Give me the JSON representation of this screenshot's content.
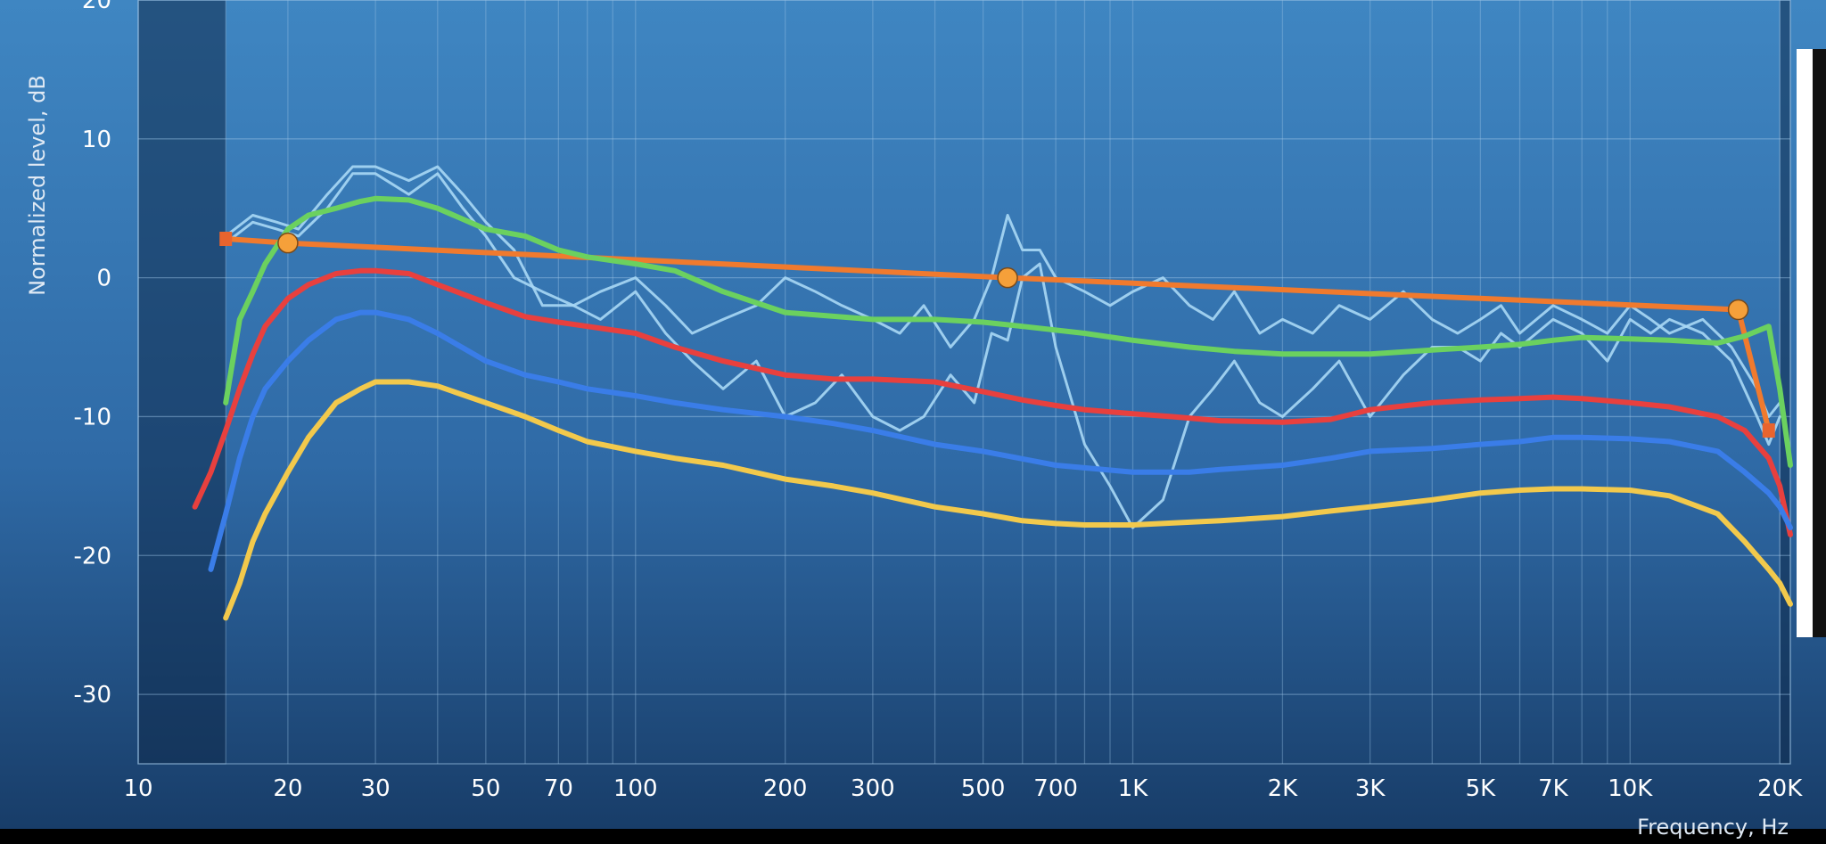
{
  "chart_data": {
    "type": "line",
    "xlabel": "Frequency, Hz",
    "ylabel": "Normalized level, dB",
    "x_scale": "log",
    "xlim": [
      10,
      21000
    ],
    "ylim": [
      -35,
      20
    ],
    "grid": true,
    "x_ticks": [
      {
        "value": 10,
        "label": "10"
      },
      {
        "value": 20,
        "label": "20"
      },
      {
        "value": 30,
        "label": "30"
      },
      {
        "value": 50,
        "label": "50"
      },
      {
        "value": 70,
        "label": "70"
      },
      {
        "value": 100,
        "label": "100"
      },
      {
        "value": 200,
        "label": "200"
      },
      {
        "value": 300,
        "label": "300"
      },
      {
        "value": 500,
        "label": "500"
      },
      {
        "value": 700,
        "label": "700"
      },
      {
        "value": 1000,
        "label": "1K"
      },
      {
        "value": 2000,
        "label": "2K"
      },
      {
        "value": 3000,
        "label": "3K"
      },
      {
        "value": 5000,
        "label": "5K"
      },
      {
        "value": 7000,
        "label": "7K"
      },
      {
        "value": 10000,
        "label": "10K"
      },
      {
        "value": 20000,
        "label": "20K"
      }
    ],
    "y_ticks": [
      {
        "value": 20,
        "label": "20"
      },
      {
        "value": 10,
        "label": "10"
      },
      {
        "value": 0,
        "label": "0"
      },
      {
        "value": -10,
        "label": "-10"
      },
      {
        "value": -20,
        "label": "-20"
      },
      {
        "value": -30,
        "label": "-30"
      }
    ],
    "shaded_ranges": [
      [
        10,
        15
      ],
      [
        20000,
        21000
      ]
    ],
    "series": [
      {
        "color": "#a8d8f5",
        "x": [
          15,
          17,
          19,
          21,
          24,
          27,
          30,
          35,
          40,
          45,
          50,
          57,
          65,
          75,
          85,
          100,
          115,
          130,
          150,
          175,
          200,
          230,
          260,
          300,
          340,
          380,
          430,
          480,
          520,
          560,
          600,
          650,
          700,
          800,
          900,
          1000,
          1150,
          1300,
          1450,
          1600,
          1800,
          2000,
          2300,
          2600,
          3000,
          3500,
          4000,
          4500,
          5000,
          5500,
          6000,
          7000,
          8000,
          9000,
          10000,
          11000,
          12000,
          14000,
          16000,
          18000,
          19000,
          20000
        ],
        "y": [
          3,
          4.5,
          4,
          3.5,
          6,
          8,
          8,
          7,
          8,
          6,
          4,
          2,
          -2,
          -2,
          -3,
          -1,
          -4,
          -6,
          -8,
          -6,
          -10,
          -9,
          -7,
          -10,
          -11,
          -10,
          -7,
          -9,
          -4,
          -4.5,
          0,
          1,
          -5,
          -12,
          -15,
          -18,
          -16,
          -10,
          -8,
          -6,
          -9,
          -10,
          -8,
          -6,
          -10,
          -7,
          -5,
          -5,
          -6,
          -4,
          -5,
          -3,
          -4,
          -6,
          -3,
          -4,
          -3,
          -4,
          -6,
          -10,
          -12,
          -10
        ]
      },
      {
        "color": "#a8d8f5",
        "x": [
          15,
          17,
          19,
          21,
          24,
          27,
          30,
          35,
          40,
          45,
          50,
          57,
          65,
          75,
          85,
          100,
          115,
          130,
          150,
          175,
          200,
          230,
          260,
          300,
          340,
          380,
          430,
          480,
          520,
          560,
          600,
          650,
          700,
          800,
          900,
          1000,
          1150,
          1300,
          1450,
          1600,
          1800,
          2000,
          2300,
          2600,
          3000,
          3500,
          4000,
          4500,
          5000,
          5500,
          6000,
          7000,
          8000,
          9000,
          10000,
          11000,
          12000,
          14000,
          16000,
          18000,
          19000,
          20000
        ],
        "y": [
          2.5,
          4,
          3.5,
          3,
          5,
          7.5,
          7.5,
          6,
          7.5,
          5,
          3,
          0,
          -1,
          -2,
          -1,
          0,
          -2,
          -4,
          -3,
          -2,
          0,
          -1,
          -2,
          -3,
          -4,
          -2,
          -5,
          -3,
          0,
          4.5,
          2,
          2,
          0,
          -1,
          -2,
          -1,
          0,
          -2,
          -3,
          -1,
          -4,
          -3,
          -4,
          -2,
          -3,
          -1,
          -3,
          -4,
          -3,
          -2,
          -4,
          -2,
          -3,
          -4,
          -2,
          -3,
          -4,
          -3,
          -5,
          -8,
          -10,
          -9
        ]
      },
      {
        "color": "#f07a2e",
        "x": [
          15,
          20,
          560,
          16500,
          19000
        ],
        "y": [
          2.8,
          2.5,
          0,
          -2.3,
          -11
        ]
      },
      {
        "color": "#6bd15f",
        "x": [
          15,
          16,
          17,
          18,
          20,
          22,
          25,
          28,
          30,
          35,
          40,
          50,
          60,
          70,
          80,
          100,
          120,
          150,
          200,
          300,
          400,
          500,
          600,
          800,
          1000,
          1300,
          1600,
          2000,
          3000,
          4000,
          5000,
          6000,
          7000,
          8000,
          10000,
          12000,
          15000,
          17000,
          19000,
          20000,
          21000
        ],
        "y": [
          -9,
          -3,
          -1,
          1,
          3.5,
          4.5,
          5,
          5.5,
          5.7,
          5.6,
          5,
          3.5,
          3,
          2,
          1.5,
          1,
          0.5,
          -1,
          -2.5,
          -3,
          -3,
          -3.2,
          -3.5,
          -4,
          -4.5,
          -5,
          -5.3,
          -5.5,
          -5.5,
          -5.2,
          -5,
          -4.8,
          -4.5,
          -4.3,
          -4.4,
          -4.5,
          -4.7,
          -4.2,
          -3.5,
          -8,
          -13.5
        ]
      },
      {
        "color": "#e8403e",
        "x": [
          13,
          14,
          15,
          16,
          17,
          18,
          20,
          22,
          25,
          28,
          30,
          35,
          40,
          50,
          60,
          70,
          80,
          100,
          120,
          150,
          200,
          250,
          300,
          400,
          500,
          600,
          700,
          800,
          1000,
          1200,
          1500,
          2000,
          2500,
          3000,
          4000,
          5000,
          6000,
          7000,
          8000,
          10000,
          12000,
          15000,
          17000,
          19000,
          20000,
          21000
        ],
        "y": [
          -16.5,
          -14,
          -11,
          -8,
          -5.5,
          -3.5,
          -1.5,
          -0.5,
          0.3,
          0.5,
          0.5,
          0.3,
          -0.5,
          -1.8,
          -2.8,
          -3.2,
          -3.5,
          -4,
          -5,
          -6,
          -7,
          -7.3,
          -7.3,
          -7.5,
          -8.2,
          -8.8,
          -9.2,
          -9.5,
          -9.8,
          -10,
          -10.3,
          -10.4,
          -10.2,
          -9.5,
          -9,
          -8.8,
          -8.7,
          -8.6,
          -8.7,
          -9,
          -9.3,
          -10,
          -11,
          -13,
          -15,
          -18.5
        ]
      },
      {
        "color": "#3a7de8",
        "x": [
          14,
          15,
          16,
          17,
          18,
          20,
          22,
          25,
          28,
          30,
          35,
          40,
          50,
          60,
          70,
          80,
          100,
          120,
          150,
          200,
          250,
          300,
          400,
          500,
          700,
          1000,
          1300,
          1500,
          2000,
          2500,
          3000,
          4000,
          5000,
          6000,
          7000,
          8000,
          10000,
          12000,
          15000,
          17000,
          19000,
          20000,
          21000
        ],
        "y": [
          -21,
          -17,
          -13,
          -10,
          -8,
          -6,
          -4.5,
          -3,
          -2.5,
          -2.5,
          -3,
          -4,
          -6,
          -7,
          -7.5,
          -8,
          -8.5,
          -9,
          -9.5,
          -10,
          -10.5,
          -11,
          -12,
          -12.5,
          -13.5,
          -14,
          -14,
          -13.8,
          -13.5,
          -13,
          -12.5,
          -12.3,
          -12,
          -11.8,
          -11.5,
          -11.5,
          -11.6,
          -11.8,
          -12.5,
          -14,
          -15.5,
          -16.5,
          -18
        ]
      },
      {
        "color": "#f2c94c",
        "x": [
          15,
          16,
          17,
          18,
          20,
          22,
          25,
          28,
          30,
          35,
          40,
          50,
          60,
          70,
          80,
          100,
          120,
          150,
          200,
          250,
          300,
          400,
          500,
          600,
          700,
          800,
          1000,
          1300,
          1500,
          2000,
          2500,
          3000,
          4000,
          5000,
          6000,
          7000,
          8000,
          10000,
          12000,
          15000,
          17000,
          19000,
          20000,
          21000
        ],
        "y": [
          -24.5,
          -22,
          -19,
          -17,
          -14,
          -11.5,
          -9,
          -8,
          -7.5,
          -7.5,
          -7.8,
          -9,
          -10,
          -11,
          -11.8,
          -12.5,
          -13,
          -13.5,
          -14.5,
          -15,
          -15.5,
          -16.5,
          -17,
          -17.5,
          -17.7,
          -17.8,
          -17.8,
          -17.6,
          -17.5,
          -17.2,
          -16.8,
          -16.5,
          -16,
          -15.5,
          -15.3,
          -15.2,
          -15.2,
          -15.3,
          -15.7,
          -17,
          -19,
          -21,
          -22,
          -23.5
        ]
      }
    ],
    "markers": [
      {
        "x": 20,
        "y": 2.5,
        "color": "#f5a03a"
      },
      {
        "x": 560,
        "y": 0,
        "color": "#f5a03a"
      },
      {
        "x": 16500,
        "y": -2.3,
        "color": "#f5a03a"
      },
      {
        "x": 15,
        "y": 2.8,
        "color": "#e8642e",
        "shape": "square"
      },
      {
        "x": 19000,
        "y": -11,
        "color": "#e8642e",
        "shape": "square"
      }
    ]
  }
}
